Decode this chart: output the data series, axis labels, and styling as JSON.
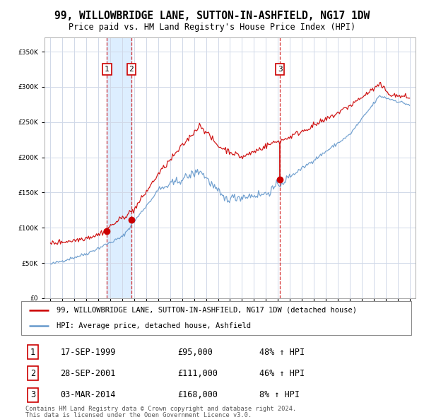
{
  "title": "99, WILLOWBRIDGE LANE, SUTTON-IN-ASHFIELD, NG17 1DW",
  "subtitle": "Price paid vs. HM Land Registry's House Price Index (HPI)",
  "red_label": "99, WILLOWBRIDGE LANE, SUTTON-IN-ASHFIELD, NG17 1DW (detached house)",
  "blue_label": "HPI: Average price, detached house, Ashfield",
  "transactions": [
    {
      "num": 1,
      "date_str": "17-SEP-1999",
      "date_x": 1999.72,
      "price": 95000,
      "red_y": 95000,
      "pct": "48% ↑ HPI"
    },
    {
      "num": 2,
      "date_str": "28-SEP-2001",
      "date_x": 2001.75,
      "price": 111000,
      "red_y": 111000,
      "pct": "46% ↑ HPI"
    },
    {
      "num": 3,
      "date_str": "03-MAR-2014",
      "date_x": 2014.17,
      "price": 168000,
      "red_y": 168000,
      "pct": "8% ↑ HPI"
    }
  ],
  "footer1": "Contains HM Land Registry data © Crown copyright and database right 2024.",
  "footer2": "This data is licensed under the Open Government Licence v3.0.",
  "ylim": [
    0,
    370000
  ],
  "xlim_start": 1994.5,
  "xlim_end": 2025.5,
  "bg_color": "#ffffff",
  "grid_color": "#d0d8e8",
  "red_color": "#cc0000",
  "blue_color": "#6699cc",
  "shade_color": "#ddeeff"
}
